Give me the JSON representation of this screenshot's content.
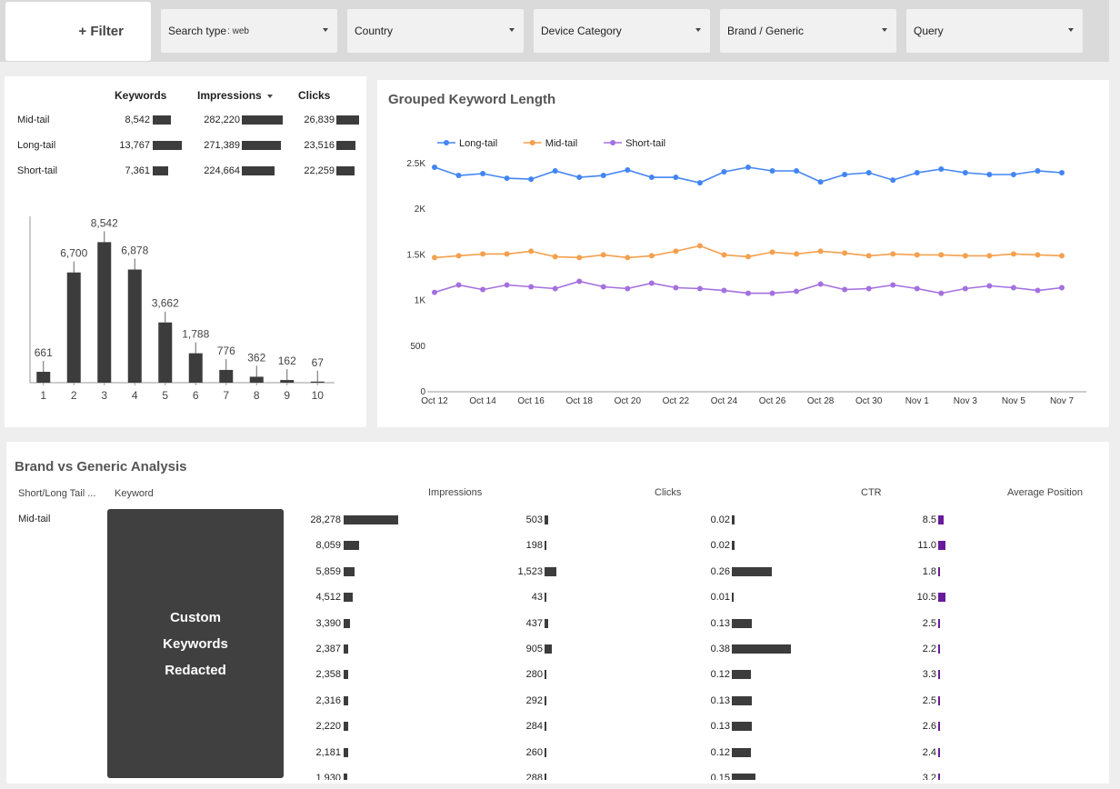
{
  "filter": {
    "label": "+ Filter"
  },
  "dropdowns": [
    {
      "label": "Search type",
      "value": ": web"
    },
    {
      "label": "Country",
      "value": ""
    },
    {
      "label": "Device Category",
      "value": ""
    },
    {
      "label": "Brand / Generic",
      "value": ""
    },
    {
      "label": "Query",
      "value": ""
    }
  ],
  "summary": {
    "headers": {
      "keywords": "Keywords",
      "impressions": "Impressions",
      "clicks": "Clicks"
    },
    "rows": [
      {
        "label": "Mid-tail",
        "keywords": "8,542",
        "impressions": "282,220",
        "clicks": "26,839"
      },
      {
        "label": "Long-tail",
        "keywords": "13,767",
        "impressions": "271,389",
        "clicks": "23,516"
      },
      {
        "label": "Short-tail",
        "keywords": "7,361",
        "impressions": "224,664",
        "clicks": "22,259"
      }
    ]
  },
  "chart_data": [
    {
      "type": "bar",
      "categories": [
        "1",
        "2",
        "3",
        "4",
        "5",
        "6",
        "7",
        "8",
        "9",
        "10"
      ],
      "values": [
        661,
        6700,
        8542,
        6878,
        3662,
        1788,
        776,
        362,
        162,
        67
      ],
      "value_labels": [
        "661",
        "6,700",
        "8,542",
        "6,878",
        "3,662",
        "1,788",
        "776",
        "362",
        "162",
        "67"
      ],
      "title": "",
      "xlabel": "",
      "ylabel": "",
      "ylim": [
        0,
        10000
      ],
      "color": "#3c3c3c"
    },
    {
      "type": "line",
      "title": "Grouped Keyword Length",
      "x": [
        "Oct 12",
        "Oct 13",
        "Oct 14",
        "Oct 15",
        "Oct 16",
        "Oct 17",
        "Oct 18",
        "Oct 19",
        "Oct 20",
        "Oct 21",
        "Oct 22",
        "Oct 23",
        "Oct 24",
        "Oct 25",
        "Oct 26",
        "Oct 27",
        "Oct 28",
        "Oct 29",
        "Oct 30",
        "Oct 31",
        "Nov 1",
        "Nov 2",
        "Nov 3",
        "Nov 4",
        "Nov 5",
        "Nov 6",
        "Nov 7"
      ],
      "xticks": [
        "Oct 12",
        "Oct 14",
        "Oct 16",
        "Oct 18",
        "Oct 20",
        "Oct 22",
        "Oct 24",
        "Oct 26",
        "Oct 28",
        "Oct 30",
        "Nov 1",
        "Nov 3",
        "Nov 5",
        "Nov 7"
      ],
      "yticks": [
        "0",
        "500",
        "1K",
        "1.5K",
        "2K",
        "2.5K"
      ],
      "ylim": [
        0,
        2500
      ],
      "legend_position": "top-left",
      "grid": false,
      "series": [
        {
          "name": "Long-tail",
          "color": "#4285f4",
          "values": [
            2460,
            2370,
            2390,
            2340,
            2330,
            2420,
            2350,
            2370,
            2430,
            2350,
            2350,
            2290,
            2410,
            2460,
            2420,
            2420,
            2300,
            2380,
            2400,
            2320,
            2400,
            2440,
            2400,
            2380,
            2380,
            2420,
            2400
          ]
        },
        {
          "name": "Mid-tail",
          "color": "#f4a04e",
          "values": [
            1470,
            1490,
            1510,
            1510,
            1540,
            1480,
            1470,
            1500,
            1470,
            1490,
            1540,
            1600,
            1500,
            1480,
            1530,
            1510,
            1540,
            1520,
            1490,
            1510,
            1500,
            1500,
            1490,
            1490,
            1510,
            1500,
            1490
          ]
        },
        {
          "name": "Short-tail",
          "color": "#a470e0",
          "values": [
            1090,
            1170,
            1120,
            1170,
            1150,
            1130,
            1210,
            1150,
            1130,
            1190,
            1140,
            1130,
            1110,
            1080,
            1080,
            1100,
            1180,
            1120,
            1130,
            1170,
            1130,
            1080,
            1130,
            1160,
            1140,
            1110,
            1140
          ]
        }
      ]
    }
  ],
  "brand": {
    "title": "Brand vs Generic Analysis",
    "headers": {
      "tail": "Short/Long Tail ...",
      "keyword": "Keyword",
      "impressions": "Impressions",
      "clicks": "Clicks",
      "ctr": "CTR",
      "position": "Average Position"
    },
    "tail_value": "Mid-tail",
    "redacted": [
      "Custom",
      "Keywords",
      "Redacted"
    ],
    "rows": [
      {
        "impressions": 28278,
        "impressions_text": "28,278",
        "clicks": 503,
        "clicks_text": "503",
        "ctr": 0.02,
        "ctr_text": "0.02",
        "position": 8.5,
        "position_text": "8.5"
      },
      {
        "impressions": 8059,
        "impressions_text": "8,059",
        "clicks": 198,
        "clicks_text": "198",
        "ctr": 0.02,
        "ctr_text": "0.02",
        "position": 11.0,
        "position_text": "11.0"
      },
      {
        "impressions": 5859,
        "impressions_text": "5,859",
        "clicks": 1523,
        "clicks_text": "1,523",
        "ctr": 0.26,
        "ctr_text": "0.26",
        "position": 1.8,
        "position_text": "1.8"
      },
      {
        "impressions": 4512,
        "impressions_text": "4,512",
        "clicks": 43,
        "clicks_text": "43",
        "ctr": 0.01,
        "ctr_text": "0.01",
        "position": 10.5,
        "position_text": "10.5"
      },
      {
        "impressions": 3390,
        "impressions_text": "3,390",
        "clicks": 437,
        "clicks_text": "437",
        "ctr": 0.13,
        "ctr_text": "0.13",
        "position": 2.5,
        "position_text": "2.5"
      },
      {
        "impressions": 2387,
        "impressions_text": "2,387",
        "clicks": 905,
        "clicks_text": "905",
        "ctr": 0.38,
        "ctr_text": "0.38",
        "position": 2.2,
        "position_text": "2.2"
      },
      {
        "impressions": 2358,
        "impressions_text": "2,358",
        "clicks": 280,
        "clicks_text": "280",
        "ctr": 0.12,
        "ctr_text": "0.12",
        "position": 3.3,
        "position_text": "3.3"
      },
      {
        "impressions": 2316,
        "impressions_text": "2,316",
        "clicks": 292,
        "clicks_text": "292",
        "ctr": 0.13,
        "ctr_text": "0.13",
        "position": 2.5,
        "position_text": "2.5"
      },
      {
        "impressions": 2220,
        "impressions_text": "2,220",
        "clicks": 284,
        "clicks_text": "284",
        "ctr": 0.13,
        "ctr_text": "0.13",
        "position": 2.6,
        "position_text": "2.6"
      },
      {
        "impressions": 2181,
        "impressions_text": "2,181",
        "clicks": 260,
        "clicks_text": "260",
        "ctr": 0.12,
        "ctr_text": "0.12",
        "position": 2.4,
        "position_text": "2.4"
      },
      {
        "impressions": 1930,
        "impressions_text": "1,930",
        "clicks": 288,
        "clicks_text": "288",
        "ctr": 0.15,
        "ctr_text": "0.15",
        "position": 3.2,
        "position_text": "3.2"
      }
    ],
    "bar_color": "#3c3c3c",
    "position_color": "#6a1b9a"
  }
}
